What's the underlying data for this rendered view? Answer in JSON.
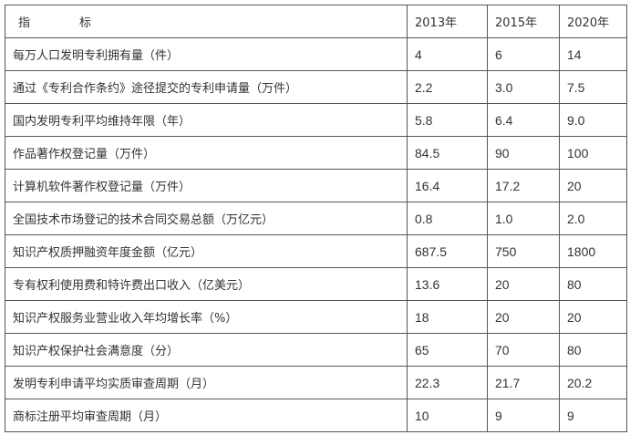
{
  "table": {
    "header": {
      "label_char1": "指",
      "label_char2": "标",
      "years": [
        "2013年",
        "2015年",
        "2020年"
      ]
    },
    "rows": [
      {
        "label": "每万人口发明专利拥有量（件）",
        "values": [
          "4",
          "6",
          "14"
        ]
      },
      {
        "label": "通过《专利合作条约》途径提交的专利申请量（万件）",
        "values": [
          "2.2",
          "3.0",
          "7.5"
        ]
      },
      {
        "label": "国内发明专利平均维持年限（年）",
        "values": [
          "5.8",
          "6.4",
          "9.0"
        ]
      },
      {
        "label": "作品著作权登记量（万件）",
        "values": [
          "84.5",
          "90",
          "100"
        ]
      },
      {
        "label": "计算机软件著作权登记量（万件）",
        "values": [
          "16.4",
          "17.2",
          "20"
        ]
      },
      {
        "label": "全国技术市场登记的技术合同交易总额（万亿元）",
        "values": [
          "0.8",
          "1.0",
          "2.0"
        ]
      },
      {
        "label": "知识产权质押融资年度金额（亿元）",
        "values": [
          "687.5",
          "750",
          "1800"
        ]
      },
      {
        "label": "专有权利使用费和特许费出口收入（亿美元）",
        "values": [
          "13.6",
          "20",
          "80"
        ]
      },
      {
        "label": "知识产权服务业营业收入年均增长率（%）",
        "values": [
          "18",
          "20",
          "20"
        ]
      },
      {
        "label": "知识产权保护社会满意度（分）",
        "values": [
          "65",
          "70",
          "80"
        ]
      },
      {
        "label": "发明专利申请平均实质审查周期（月）",
        "values": [
          "22.3",
          "21.7",
          "20.2"
        ]
      },
      {
        "label": "商标注册平均审查周期（月）",
        "values": [
          "10",
          "9",
          "9"
        ]
      }
    ]
  }
}
